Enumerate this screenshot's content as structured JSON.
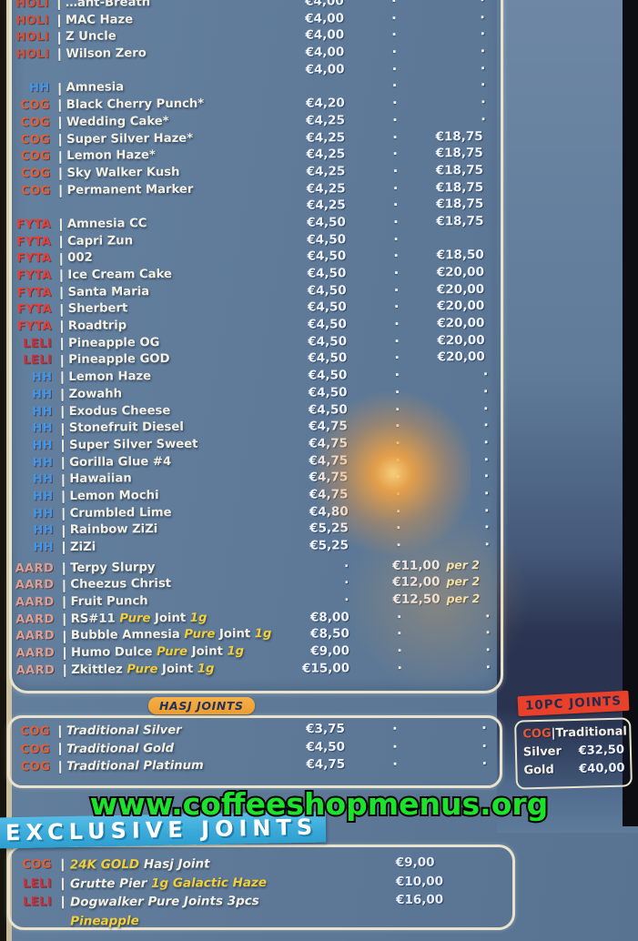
{
  "watermark": "www.coffeeshopmenus.org",
  "colors": {
    "menu_background": "#5b7795",
    "border_cream": "#e9e2cc",
    "accent_yellow": "#f2cf3a",
    "watermark_green": "#1be32b",
    "exclusive_banner_blue": "#3aa9d8",
    "hasj_badge_orange": "#ee9c2c",
    "tenpc_badge_red": "#e8402b",
    "brand": {
      "HOLI": "#d25038",
      "HH": "#3e97ea",
      "COG": "#df6038",
      "FYTA": "#e63f38",
      "LELI": "#ce2e35",
      "AARD": "#daa094"
    }
  },
  "weed_menu": {
    "rows": [
      {
        "label": "HOLI",
        "name": [
          {
            "t": "…ant-Breath"
          }
        ],
        "p1": "€4,00",
        "mid": "·",
        "p2": "·"
      },
      {
        "label": "HOLI",
        "name": [
          {
            "t": "MAC Haze"
          }
        ],
        "p1": "€4,00",
        "mid": "·",
        "p2": "·"
      },
      {
        "label": "HOLI",
        "name": [
          {
            "t": "Z Uncle"
          }
        ],
        "p1": "€4,00",
        "mid": "·",
        "p2": "·"
      },
      {
        "label": "HOLI",
        "name": [
          {
            "t": "Wilson Zero"
          }
        ],
        "p1": "€4,00",
        "mid": "·",
        "p2": "·"
      },
      {
        "label": "",
        "name": [],
        "p1": "€4,00",
        "mid": "·",
        "p2": "·"
      },
      {
        "label": "HH",
        "name": [
          {
            "t": "Amnesia"
          }
        ],
        "p1": "",
        "mid": "·",
        "p2": "·"
      },
      {
        "label": "COG",
        "name": [
          {
            "t": "Black Cherry Punch*"
          }
        ],
        "p1": "€4,20",
        "mid": "·",
        "p2": "·"
      },
      {
        "label": "COG",
        "name": [
          {
            "t": "Wedding Cake*"
          }
        ],
        "p1": "€4,25",
        "mid": "·",
        "p2": "·"
      },
      {
        "label": "COG",
        "name": [
          {
            "t": "Super Silver Haze*"
          }
        ],
        "p1": "€4,25",
        "mid": "·",
        "p2": "€18,75"
      },
      {
        "label": "COG",
        "name": [
          {
            "t": "Lemon Haze*"
          }
        ],
        "p1": "€4,25",
        "mid": "·",
        "p2": "€18,75"
      },
      {
        "label": "COG",
        "name": [
          {
            "t": "Sky Walker Kush"
          }
        ],
        "p1": "€4,25",
        "mid": "·",
        "p2": "€18,75"
      },
      {
        "label": "COG",
        "name": [
          {
            "t": "Permanent Marker"
          }
        ],
        "p1": "€4,25",
        "mid": "·",
        "p2": "€18,75"
      },
      {
        "label": "",
        "name": [],
        "p1": "€4,25",
        "mid": "·",
        "p2": "€18,75"
      },
      {
        "label": "FYTA",
        "name": [
          {
            "t": "Amnesia CC"
          }
        ],
        "p1": "€4,50",
        "mid": "·",
        "p2": "€18,75"
      },
      {
        "label": "FYTA",
        "name": [
          {
            "t": "Capri Zun"
          }
        ],
        "p1": "€4,50",
        "mid": "·",
        "p2": ""
      },
      {
        "label": "FYTA",
        "name": [
          {
            "t": "002"
          }
        ],
        "p1": "€4,50",
        "mid": "·",
        "p2": "€18,50"
      },
      {
        "label": "FYTA",
        "name": [
          {
            "t": "Ice Cream Cake"
          }
        ],
        "p1": "€4,50",
        "mid": "·",
        "p2": "€20,00"
      },
      {
        "label": "FYTA",
        "name": [
          {
            "t": "Santa Maria"
          }
        ],
        "p1": "€4,50",
        "mid": "·",
        "p2": "€20,00"
      },
      {
        "label": "FYTA",
        "name": [
          {
            "t": "Sherbert"
          }
        ],
        "p1": "€4,50",
        "mid": "·",
        "p2": "€20,00"
      },
      {
        "label": "FYTA",
        "name": [
          {
            "t": "Roadtrip"
          }
        ],
        "p1": "€4,50",
        "mid": "·",
        "p2": "€20,00"
      },
      {
        "label": "LELI",
        "name": [
          {
            "t": "Pineapple OG"
          }
        ],
        "p1": "€4,50",
        "mid": "·",
        "p2": "€20,00"
      },
      {
        "label": "LELI",
        "name": [
          {
            "t": "Pineapple GOD"
          }
        ],
        "p1": "€4,50",
        "mid": "·",
        "p2": "€20,00"
      },
      {
        "label": "HH",
        "name": [
          {
            "t": "Lemon Haze"
          }
        ],
        "p1": "€4,50",
        "mid": "·",
        "p2": "·"
      },
      {
        "label": "HH",
        "name": [
          {
            "t": "Zowahh"
          }
        ],
        "p1": "€4,50",
        "mid": "·",
        "p2": "·"
      },
      {
        "label": "HH",
        "name": [
          {
            "t": "Exodus Cheese"
          }
        ],
        "p1": "€4,50",
        "mid": "·",
        "p2": "·"
      },
      {
        "label": "HH",
        "name": [
          {
            "t": "Stonefruit Diesel"
          }
        ],
        "p1": "€4,75",
        "mid": "·",
        "p2": "·"
      },
      {
        "label": "HH",
        "name": [
          {
            "t": "Super Silver Sweet"
          }
        ],
        "p1": "€4,75",
        "mid": "·",
        "p2": "·"
      },
      {
        "label": "HH",
        "name": [
          {
            "t": "Gorilla Glue #4"
          }
        ],
        "p1": "€4,75",
        "mid": "·",
        "p2": "·"
      },
      {
        "label": "HH",
        "name": [
          {
            "t": "Hawaiian"
          }
        ],
        "p1": "€4,75",
        "mid": "·",
        "p2": "·"
      },
      {
        "label": "HH",
        "name": [
          {
            "t": "Lemon Mochi"
          }
        ],
        "p1": "€4,75",
        "mid": "·",
        "p2": "·"
      },
      {
        "label": "HH",
        "name": [
          {
            "t": "Crumbled Lime"
          }
        ],
        "p1": "€4,80",
        "mid": "·",
        "p2": "·"
      },
      {
        "label": "HH",
        "name": [
          {
            "t": "Rainbow ZiZi"
          }
        ],
        "p1": "€5,25",
        "mid": "·",
        "p2": "·"
      },
      {
        "label": "HH",
        "name": [
          {
            "t": "ZiZi"
          }
        ],
        "p1": "€5,25",
        "mid": "·",
        "p2": "·"
      },
      {
        "label": "AARD",
        "name": [
          {
            "t": "Terpy Slurpy"
          }
        ],
        "p1": "·",
        "combo": "€11,00",
        "suffix": "per 2",
        "gap": true
      },
      {
        "label": "AARD",
        "name": [
          {
            "t": "Cheezus Christ"
          }
        ],
        "p1": "·",
        "combo": "€12,00",
        "suffix": "per 2"
      },
      {
        "label": "AARD",
        "name": [
          {
            "t": "Fruit Punch"
          }
        ],
        "p1": "·",
        "combo": "€12,50",
        "suffix": "per 2"
      },
      {
        "label": "AARD",
        "name": [
          {
            "t": "RS#11 "
          },
          {
            "t": "Pure",
            "a": true
          },
          {
            "t": " Joint "
          },
          {
            "t": "1g",
            "a": true
          }
        ],
        "p1": "€8,00",
        "mid": "·",
        "p2": "·"
      },
      {
        "label": "AARD",
        "name": [
          {
            "t": "Bubble Amnesia "
          },
          {
            "t": "Pure",
            "a": true
          },
          {
            "t": " Joint "
          },
          {
            "t": "1g",
            "a": true
          }
        ],
        "p1": "€8,50",
        "mid": "·",
        "p2": "·"
      },
      {
        "label": "AARD",
        "name": [
          {
            "t": "Humo Dulce "
          },
          {
            "t": "Pure",
            "a": true
          },
          {
            "t": " Joint "
          },
          {
            "t": "1g",
            "a": true
          }
        ],
        "p1": "€9,00",
        "mid": "·",
        "p2": "·"
      },
      {
        "label": "AARD",
        "name": [
          {
            "t": "Zkittlez "
          },
          {
            "t": "Pure",
            "a": true
          },
          {
            "t": " Joint "
          },
          {
            "t": "1g",
            "a": true
          }
        ],
        "p1": "€15,00",
        "mid": "·",
        "p2": "·"
      }
    ]
  },
  "hasj": {
    "title": "HASJ JOINTS",
    "rows": [
      {
        "label": "COG",
        "name": [
          {
            "t": "Traditional Silver",
            "i": true
          }
        ],
        "p1": "€3,75",
        "mid": "·",
        "p2": "·"
      },
      {
        "label": "COG",
        "name": [
          {
            "t": "Traditional Gold",
            "i": true
          }
        ],
        "p1": "€4,50",
        "mid": "·",
        "p2": "·"
      },
      {
        "label": "COG",
        "name": [
          {
            "t": "Traditional Platinum",
            "i": true
          }
        ],
        "p1": "€4,75",
        "mid": "·",
        "p2": "·"
      }
    ]
  },
  "tenpc": {
    "title": "10PC JOINTS",
    "brand": "COG",
    "separator": "|",
    "series": "Traditional",
    "rows": [
      {
        "name": "Silver",
        "price": "€32,50"
      },
      {
        "name": "Gold",
        "price": "€40,00"
      }
    ]
  },
  "exclusive": {
    "title": "EXCLUSIVE JOINTS",
    "rows": [
      {
        "label": "COG",
        "name": [
          {
            "t": "24K GOLD ",
            "a": true
          },
          {
            "t": "Hasj Joint",
            "i": true
          }
        ],
        "price": "€9,00"
      },
      {
        "label": "LELI",
        "name": [
          {
            "t": "Grutte Pier ",
            "i": true
          },
          {
            "t": "1g Galactic Haze",
            "a": true
          }
        ],
        "price": "€10,00"
      },
      {
        "label": "LELI",
        "name": [
          {
            "t": "Dogwalker Pure Joints 3pcs",
            "i": true
          }
        ],
        "price": "€16,00"
      },
      {
        "label": "",
        "name": [
          {
            "t": "Pineapple",
            "a": true
          }
        ],
        "price": ""
      }
    ]
  }
}
